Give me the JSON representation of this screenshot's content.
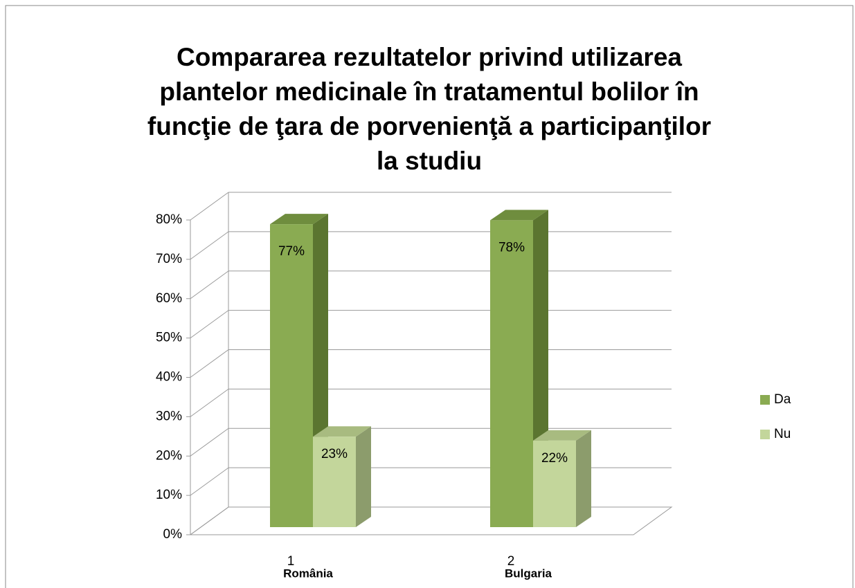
{
  "chart_data": {
    "type": "bar3d",
    "title": [
      "Compararea rezultatelor privind utilizarea",
      "plantelor medicinale în tratamentul bolilor în",
      "funcţie de ţara de porvenienţă a participanţilor",
      "la studiu"
    ],
    "categories": [
      "1",
      "2"
    ],
    "category_names": [
      "România",
      "Bulgaria"
    ],
    "series": [
      {
        "name": "Da",
        "color": "#8aab52",
        "values": [
          77,
          78
        ],
        "value_labels": [
          "77%",
          "78%"
        ]
      },
      {
        "name": "Nu",
        "color": "#c3d69b",
        "values": [
          23,
          22
        ],
        "value_labels": [
          "23%",
          "22%"
        ]
      }
    ],
    "ylim": [
      0,
      80
    ],
    "yticks": [
      {
        "value": 0,
        "label": "0%"
      },
      {
        "value": 10,
        "label": "10%"
      },
      {
        "value": 20,
        "label": "20%"
      },
      {
        "value": 30,
        "label": "30%"
      },
      {
        "value": 40,
        "label": "40%"
      },
      {
        "value": 50,
        "label": "50%"
      },
      {
        "value": 60,
        "label": "60%"
      },
      {
        "value": 70,
        "label": "70%"
      },
      {
        "value": 80,
        "label": "80%"
      }
    ],
    "grid": true,
    "legend": "right"
  }
}
